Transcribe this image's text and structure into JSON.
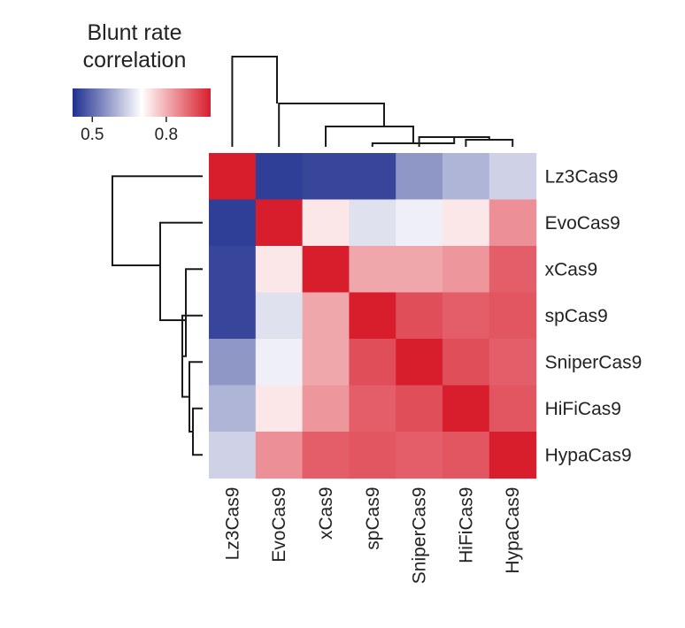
{
  "chart_data": {
    "type": "heatmap",
    "title": "",
    "labels": [
      "Lz3Cas9",
      "EvoCas9",
      "xCas9",
      "spCas9",
      "SniperCas9",
      "HiFiCas9",
      "HypaCas9"
    ],
    "matrix": [
      [
        1.0,
        0.44,
        0.45,
        0.45,
        0.56,
        0.6,
        0.64
      ],
      [
        0.44,
        1.0,
        0.73,
        0.66,
        0.68,
        0.73,
        0.84
      ],
      [
        0.45,
        0.73,
        1.0,
        0.81,
        0.81,
        0.83,
        0.9
      ],
      [
        0.45,
        0.66,
        0.81,
        1.0,
        0.92,
        0.9,
        0.91
      ],
      [
        0.56,
        0.68,
        0.81,
        0.92,
        1.0,
        0.92,
        0.9
      ],
      [
        0.6,
        0.73,
        0.83,
        0.9,
        0.92,
        1.0,
        0.91
      ],
      [
        0.64,
        0.84,
        0.9,
        0.91,
        0.9,
        0.91,
        1.0
      ]
    ],
    "colorbar": {
      "title_lines": [
        "Blunt rate",
        "correlation"
      ],
      "ticks": [
        0.5,
        0.8
      ],
      "range": [
        0.42,
        0.98
      ],
      "low_color": "#1f2f8f",
      "mid_color": "#ffffff",
      "high_color": "#d81e2c"
    },
    "dendrograms": [
      "top",
      "left"
    ],
    "grid": false
  }
}
